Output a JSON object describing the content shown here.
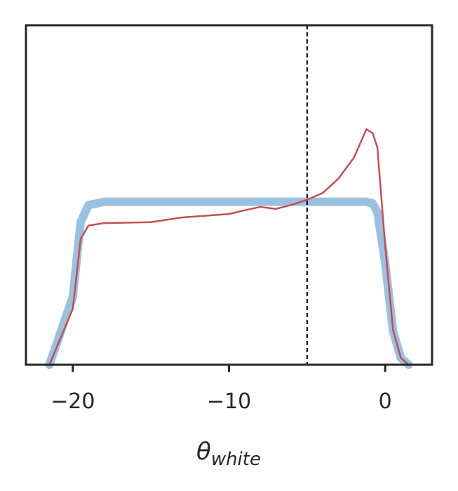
{
  "chart_data": {
    "type": "line",
    "xlabel": {
      "symbol": "θ",
      "subscript": "white"
    },
    "x": [
      -21.5,
      -20,
      -19.5,
      -19,
      -18,
      -15,
      -13,
      -10,
      -9,
      -8,
      -7,
      -6,
      -5,
      -4,
      -3,
      -2,
      -1.2,
      -0.8,
      -0.5,
      0,
      0.5,
      1,
      1.5
    ],
    "series": [
      {
        "color": "#8ab6da",
        "width": 12,
        "values": [
          0,
          0.2,
          0.42,
          0.47,
          0.48,
          0.48,
          0.48,
          0.48,
          0.48,
          0.48,
          0.48,
          0.48,
          0.48,
          0.48,
          0.48,
          0.48,
          0.48,
          0.475,
          0.45,
          0.3,
          0.1,
          0.02,
          0
        ]
      },
      {
        "color": "#c44e52",
        "width": 2.5,
        "values": [
          0,
          0.165,
          0.37,
          0.41,
          0.417,
          0.42,
          0.434,
          0.444,
          0.455,
          0.465,
          0.459,
          0.471,
          0.486,
          0.506,
          0.548,
          0.61,
          0.694,
          0.682,
          0.64,
          0.35,
          0.103,
          0.02,
          0
        ]
      }
    ],
    "vline": {
      "x": -5,
      "color": "#000000"
    },
    "xlim": [
      -23,
      3
    ],
    "ylim": [
      0,
      1
    ],
    "xticks": [
      {
        "value": -20,
        "label": "−20"
      },
      {
        "value": -10,
        "label": "−10"
      },
      {
        "value": 0,
        "label": "0"
      }
    ]
  }
}
